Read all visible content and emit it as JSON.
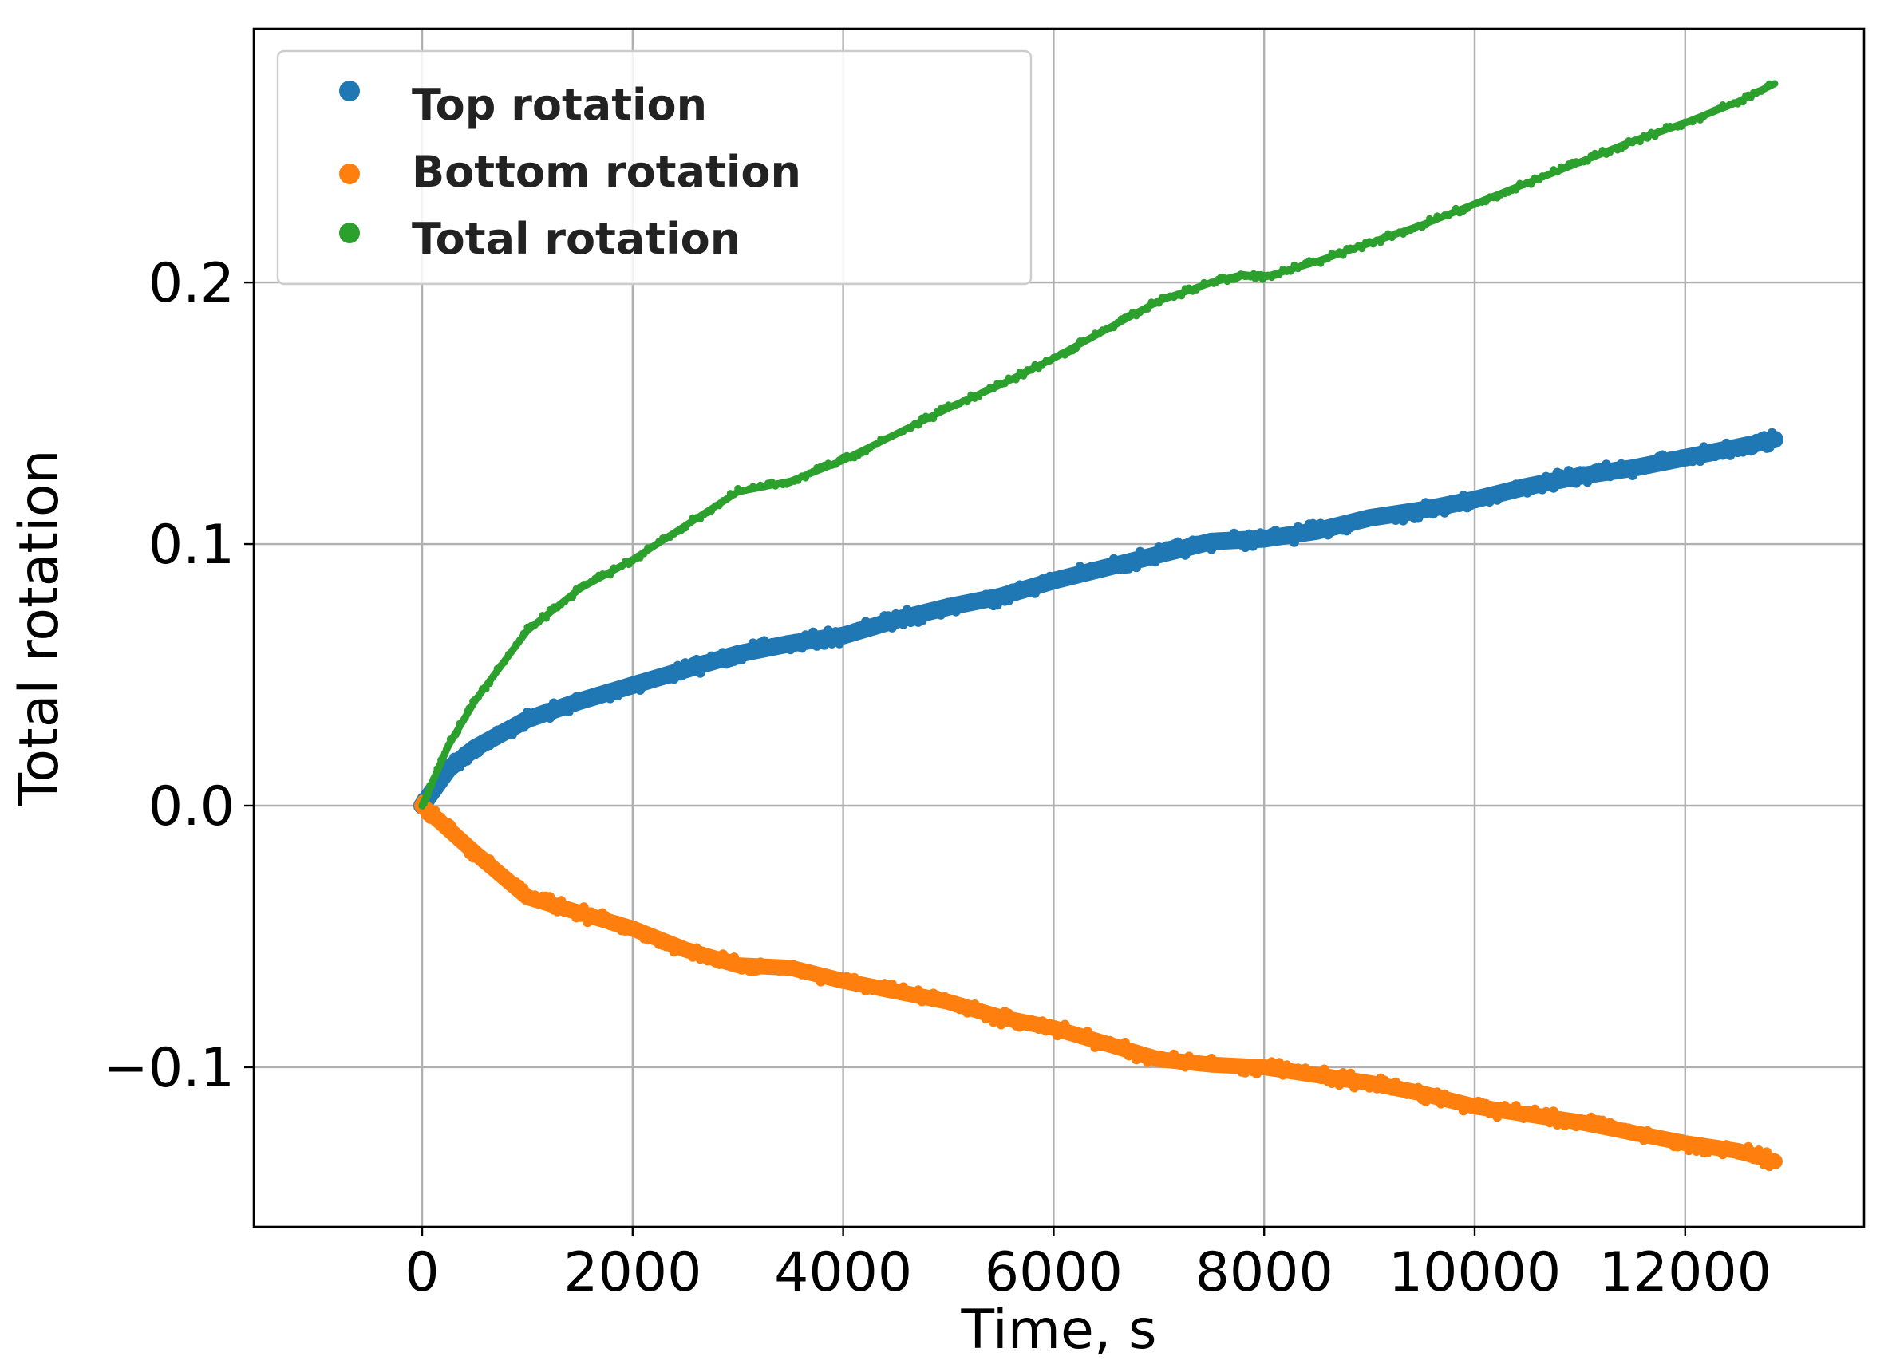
{
  "chart_data": {
    "type": "scatter",
    "title": "",
    "xlabel": "Time, s",
    "ylabel": "Total rotation",
    "xlim": [
      -1600,
      13700
    ],
    "ylim": [
      -0.161,
      0.297
    ],
    "x_ticks": [
      0,
      2000,
      4000,
      6000,
      8000,
      10000,
      12000
    ],
    "x_tick_labels": [
      "0",
      "2000",
      "4000",
      "6000",
      "8000",
      "10000",
      "12000"
    ],
    "y_ticks": [
      -0.1,
      0.0,
      0.1,
      0.2
    ],
    "y_tick_labels": [
      "−0.1",
      "0.0",
      "0.1",
      "0.2"
    ],
    "grid": true,
    "legend_position": "top-left",
    "series": [
      {
        "name": "Top rotation",
        "color": "#1f77b4",
        "x": [
          0,
          250,
          500,
          1000,
          1500,
          2000,
          2500,
          3000,
          3500,
          4000,
          4500,
          5000,
          5500,
          6000,
          6500,
          7000,
          7500,
          8000,
          8500,
          9000,
          9500,
          10000,
          10500,
          11000,
          11500,
          12000,
          12500,
          12850
        ],
        "y": [
          0.0,
          0.014,
          0.022,
          0.033,
          0.04,
          0.046,
          0.052,
          0.058,
          0.062,
          0.065,
          0.071,
          0.076,
          0.08,
          0.086,
          0.091,
          0.096,
          0.101,
          0.102,
          0.105,
          0.11,
          0.113,
          0.117,
          0.122,
          0.126,
          0.129,
          0.133,
          0.137,
          0.14
        ]
      },
      {
        "name": "Bottom rotation",
        "color": "#ff7f0e",
        "x": [
          0,
          250,
          500,
          1000,
          1500,
          2000,
          2500,
          3000,
          3500,
          4000,
          4500,
          5000,
          5500,
          6000,
          6500,
          7000,
          7500,
          8000,
          8500,
          9000,
          9500,
          10000,
          10500,
          11000,
          11500,
          12000,
          12500,
          12850
        ],
        "y": [
          0.0,
          -0.009,
          -0.018,
          -0.035,
          -0.041,
          -0.047,
          -0.055,
          -0.061,
          -0.062,
          -0.067,
          -0.071,
          -0.075,
          -0.081,
          -0.085,
          -0.091,
          -0.097,
          -0.099,
          -0.1,
          -0.103,
          -0.106,
          -0.11,
          -0.115,
          -0.118,
          -0.121,
          -0.125,
          -0.129,
          -0.132,
          -0.136
        ]
      },
      {
        "name": "Total rotation",
        "color": "#2ca02c",
        "x": [
          0,
          250,
          500,
          1000,
          1500,
          2000,
          2500,
          3000,
          3500,
          4000,
          4500,
          5000,
          5500,
          6000,
          6500,
          7000,
          7500,
          7800,
          8000,
          8500,
          9000,
          9500,
          10000,
          10500,
          11000,
          11500,
          12000,
          12500,
          12850
        ],
        "y": [
          0.0,
          0.023,
          0.04,
          0.067,
          0.083,
          0.094,
          0.107,
          0.12,
          0.124,
          0.132,
          0.142,
          0.152,
          0.161,
          0.171,
          0.182,
          0.193,
          0.2,
          0.203,
          0.202,
          0.208,
          0.215,
          0.222,
          0.23,
          0.238,
          0.246,
          0.254,
          0.261,
          0.269,
          0.276
        ]
      }
    ]
  }
}
